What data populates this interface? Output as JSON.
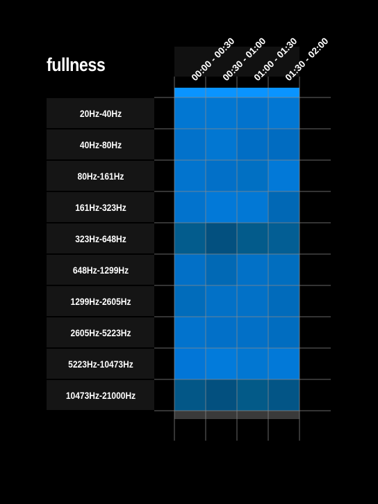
{
  "title": "fullness",
  "chart_data": {
    "type": "heatmap",
    "title": "fullness",
    "columns": [
      "00:00 - 00:30",
      "00:30 - 01:00",
      "01:00 - 01:30",
      "01:30 - 02:00"
    ],
    "rows": [
      "20Hz-40Hz",
      "40Hz-80Hz",
      "80Hz-161Hz",
      "161Hz-323Hz",
      "323Hz-648Hz",
      "648Hz-1299Hz",
      "1299Hz-2605Hz",
      "2605Hz-5223Hz",
      "5223Hz-10473Hz",
      "10473Hz-21000Hz"
    ],
    "cell_colors": [
      [
        "#0277d2",
        "#0277d2",
        "#0273cd",
        "#0277d3"
      ],
      [
        "#0272cb",
        "#0277d2",
        "#016ec5",
        "#016cc1"
      ],
      [
        "#0274ce",
        "#0270c8",
        "#0170c3",
        "#0279d8"
      ],
      [
        "#0273cd",
        "#0279d8",
        "#0278d5",
        "#0168b5"
      ],
      [
        "#035c8d",
        "#03507f",
        "#035b8b",
        "#035e94"
      ],
      [
        "#0270c7",
        "#0169b5",
        "#0271c7",
        "#016ebf"
      ],
      [
        "#016cbb",
        "#0271c7",
        "#0271c7",
        "#016bbb"
      ],
      [
        "#0273cd",
        "#0270c8",
        "#0270c7",
        "#016dc0"
      ],
      [
        "#0276d7",
        "#027bdb",
        "#0277d2",
        "#0279d8"
      ],
      [
        "#035787",
        "#03507f",
        "#035a88",
        "#035586"
      ]
    ],
    "legend_color": "#0a94ff"
  }
}
